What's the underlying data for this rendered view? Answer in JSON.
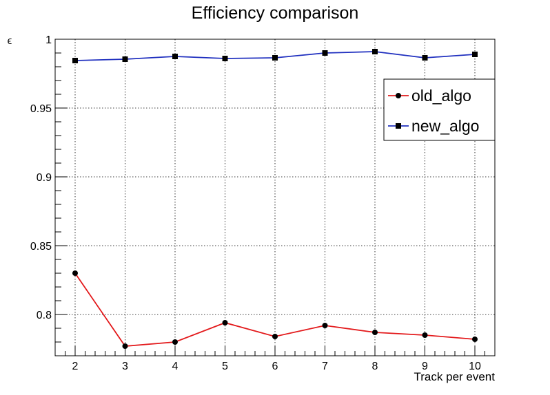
{
  "chart_data": {
    "type": "line",
    "title": "Efficiency comparison",
    "xlabel": "Track per event",
    "ylabel": "ϵ",
    "x": [
      2,
      3,
      4,
      5,
      6,
      7,
      8,
      9,
      10
    ],
    "xlim": [
      1.6,
      10.4
    ],
    "ylim": [
      0.77,
      1.0
    ],
    "x_ticks": [
      "2",
      "3",
      "4",
      "5",
      "6",
      "7",
      "8",
      "9",
      "10"
    ],
    "y_ticks": [
      {
        "value": 0.8,
        "label": "0.8"
      },
      {
        "value": 0.85,
        "label": "0.85"
      },
      {
        "value": 0.9,
        "label": "0.9"
      },
      {
        "value": 0.95,
        "label": "0.95"
      },
      {
        "value": 1.0,
        "label": "1"
      }
    ],
    "grid": true,
    "legend_position": "top-right",
    "series": [
      {
        "name": "old_algo",
        "color": "#e31a1c",
        "marker": "circle",
        "values": [
          0.83,
          0.777,
          0.78,
          0.794,
          0.784,
          0.792,
          0.787,
          0.785,
          0.782
        ]
      },
      {
        "name": "new_algo",
        "color": "#1f2fbf",
        "marker": "square",
        "values": [
          0.9845,
          0.9855,
          0.9875,
          0.986,
          0.9865,
          0.99,
          0.991,
          0.9865,
          0.989
        ]
      }
    ]
  }
}
